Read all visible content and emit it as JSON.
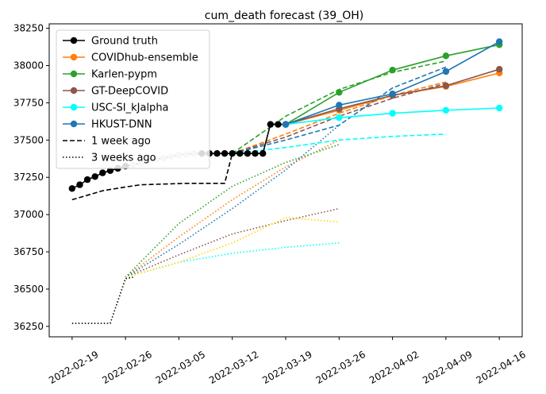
{
  "chart_data": {
    "type": "line",
    "title": "cum_death forecast (39_OH)",
    "xlabel": "",
    "ylabel": "",
    "x_ticks": [
      "2022-02-19",
      "2022-02-26",
      "2022-03-05",
      "2022-03-12",
      "2022-03-19",
      "2022-03-26",
      "2022-04-02",
      "2022-04-09",
      "2022-04-16"
    ],
    "y_ticks": [
      36250,
      36500,
      36750,
      37000,
      37250,
      37500,
      37750,
      38000,
      38250
    ],
    "xlim": [
      "2022-02-16",
      "2022-04-19"
    ],
    "ylim": [
      36180,
      38280
    ],
    "grid": false,
    "legend_position": "top-left",
    "legend": [
      {
        "label": "Ground truth",
        "color": "#000000",
        "style": "solid-marker"
      },
      {
        "label": "COVIDhub-ensemble",
        "color": "#ff7f0e",
        "style": "solid-marker"
      },
      {
        "label": "Karlen-pypm",
        "color": "#2ca02c",
        "style": "solid-marker"
      },
      {
        "label": "GT-DeepCOVID",
        "color": "#8c564b",
        "style": "solid-marker"
      },
      {
        "label": "USC-SI_kJalpha",
        "color": "#00ffff",
        "style": "solid-marker"
      },
      {
        "label": "HKUST-DNN",
        "color": "#1f77b4",
        "style": "solid-marker"
      },
      {
        "label": "1 week ago",
        "color": "#000000",
        "style": "dashed"
      },
      {
        "label": "3 weeks ago",
        "color": "#000000",
        "style": "dotted"
      }
    ],
    "ground_truth": {
      "name": "Ground truth",
      "color": "#000000",
      "points": [
        [
          "2022-02-19",
          37175
        ],
        [
          "2022-02-20",
          37200
        ],
        [
          "2022-02-21",
          37235
        ],
        [
          "2022-02-22",
          37255
        ],
        [
          "2022-02-23",
          37280
        ],
        [
          "2022-02-24",
          37295
        ],
        [
          "2022-02-25",
          37310
        ],
        [
          "2022-02-26",
          37325
        ],
        [
          "2022-02-27",
          37335
        ],
        [
          "2022-02-28",
          37345
        ],
        [
          "2022-03-01",
          37360
        ],
        [
          "2022-03-02",
          37370
        ],
        [
          "2022-03-03",
          37380
        ],
        [
          "2022-03-04",
          37390
        ],
        [
          "2022-03-05",
          37400
        ],
        [
          "2022-03-06",
          37405
        ],
        [
          "2022-03-07",
          37410
        ],
        [
          "2022-03-08",
          37410
        ],
        [
          "2022-03-09",
          37410
        ],
        [
          "2022-03-10",
          37410
        ],
        [
          "2022-03-11",
          37410
        ],
        [
          "2022-03-12",
          37410
        ],
        [
          "2022-03-13",
          37410
        ],
        [
          "2022-03-14",
          37410
        ],
        [
          "2022-03-15",
          37410
        ],
        [
          "2022-03-16",
          37410
        ],
        [
          "2022-03-17",
          37605
        ],
        [
          "2022-03-18",
          37605
        ],
        [
          "2022-03-19",
          37605
        ]
      ],
      "faded_range": [
        "2022-02-27",
        "2022-03-07"
      ]
    },
    "one_week_ago_truth": {
      "name": "1 week ago",
      "color": "#000000",
      "points": [
        [
          "2022-02-19",
          37100
        ],
        [
          "2022-02-21",
          37130
        ],
        [
          "2022-02-23",
          37160
        ],
        [
          "2022-02-26",
          37185
        ],
        [
          "2022-02-28",
          37200
        ],
        [
          "2022-03-03",
          37205
        ],
        [
          "2022-03-06",
          37210
        ],
        [
          "2022-03-09",
          37210
        ],
        [
          "2022-03-11",
          37210
        ],
        [
          "2022-03-12",
          37410
        ]
      ]
    },
    "three_weeks_ago_truth": {
      "name": "3 weeks ago",
      "color": "#000000",
      "points": [
        [
          "2022-02-19",
          36270
        ],
        [
          "2022-02-21",
          36270
        ],
        [
          "2022-02-24",
          36270
        ],
        [
          "2022-02-25",
          36420
        ],
        [
          "2022-02-26",
          36570
        ],
        [
          "2022-02-27",
          36580
        ]
      ]
    },
    "forecast_x": [
      "2022-03-19",
      "2022-03-26",
      "2022-04-02",
      "2022-04-09",
      "2022-04-16"
    ],
    "series": [
      {
        "name": "COVIDhub-ensemble",
        "color": "#ff7f0e",
        "values": [
          37605,
          37700,
          37800,
          37860,
          37950
        ]
      },
      {
        "name": "Karlen-pypm",
        "color": "#2ca02c",
        "values": [
          37605,
          37820,
          37970,
          38065,
          38140
        ]
      },
      {
        "name": "GT-DeepCOVID",
        "color": "#8c564b",
        "values": [
          37605,
          37710,
          37800,
          37865,
          37975
        ]
      },
      {
        "name": "USC-SI_kJalpha",
        "color": "#00ffff",
        "values": [
          37605,
          37650,
          37680,
          37700,
          37715
        ]
      },
      {
        "name": "HKUST-DNN",
        "color": "#1f77b4",
        "values": [
          37605,
          37735,
          37810,
          37960,
          38160
        ]
      }
    ],
    "one_week_ago_forecasts": {
      "x": [
        "2022-03-12",
        "2022-03-19",
        "2022-03-26",
        "2022-04-02",
        "2022-04-09"
      ],
      "series": [
        {
          "name": "COVIDhub-ensemble",
          "color": "#ff7f0e",
          "values": [
            37410,
            37540,
            37680,
            37800,
            37890
          ]
        },
        {
          "name": "Karlen-pypm",
          "color": "#2ca02c",
          "values": [
            37410,
            37660,
            37840,
            37955,
            38030
          ]
        },
        {
          "name": "GT-DeepCOVID",
          "color": "#8c564b",
          "values": [
            37410,
            37520,
            37660,
            37780,
            37880
          ]
        },
        {
          "name": "USC-SI_kJalpha",
          "color": "#00ffff",
          "values": [
            37410,
            37450,
            37500,
            37525,
            37540
          ]
        },
        {
          "name": "HKUST-DNN",
          "color": "#1f77b4",
          "values": [
            37410,
            37500,
            37600,
            37850,
            37990
          ]
        }
      ]
    },
    "three_weeks_ago_forecasts": {
      "x": [
        "2022-02-26",
        "2022-03-05",
        "2022-03-12",
        "2022-03-19",
        "2022-03-26"
      ],
      "series": [
        {
          "name": "COVIDhub-ensemble",
          "color": "#ff7f0e",
          "values": [
            36580,
            36850,
            37100,
            37320,
            37500
          ]
        },
        {
          "name": "Karlen-pypm",
          "color": "#2ca02c",
          "values": [
            36580,
            36940,
            37190,
            37350,
            37470
          ]
        },
        {
          "name": "GT-DeepCOVID",
          "color": "#8c564b",
          "values": [
            36580,
            36730,
            36870,
            36960,
            37040
          ]
        },
        {
          "name": "USC-SI_kJalpha",
          "color": "#00ffff",
          "values": [
            36580,
            36680,
            36740,
            36780,
            36810
          ]
        },
        {
          "name": "HKUST-DNN",
          "color": "#1f77b4",
          "values": [
            36580,
            36800,
            37040,
            37300,
            37600
          ]
        },
        {
          "name": "",
          "color": "#ffd700",
          "values": [
            36580,
            36680,
            36810,
            36980,
            36950
          ]
        }
      ]
    }
  }
}
